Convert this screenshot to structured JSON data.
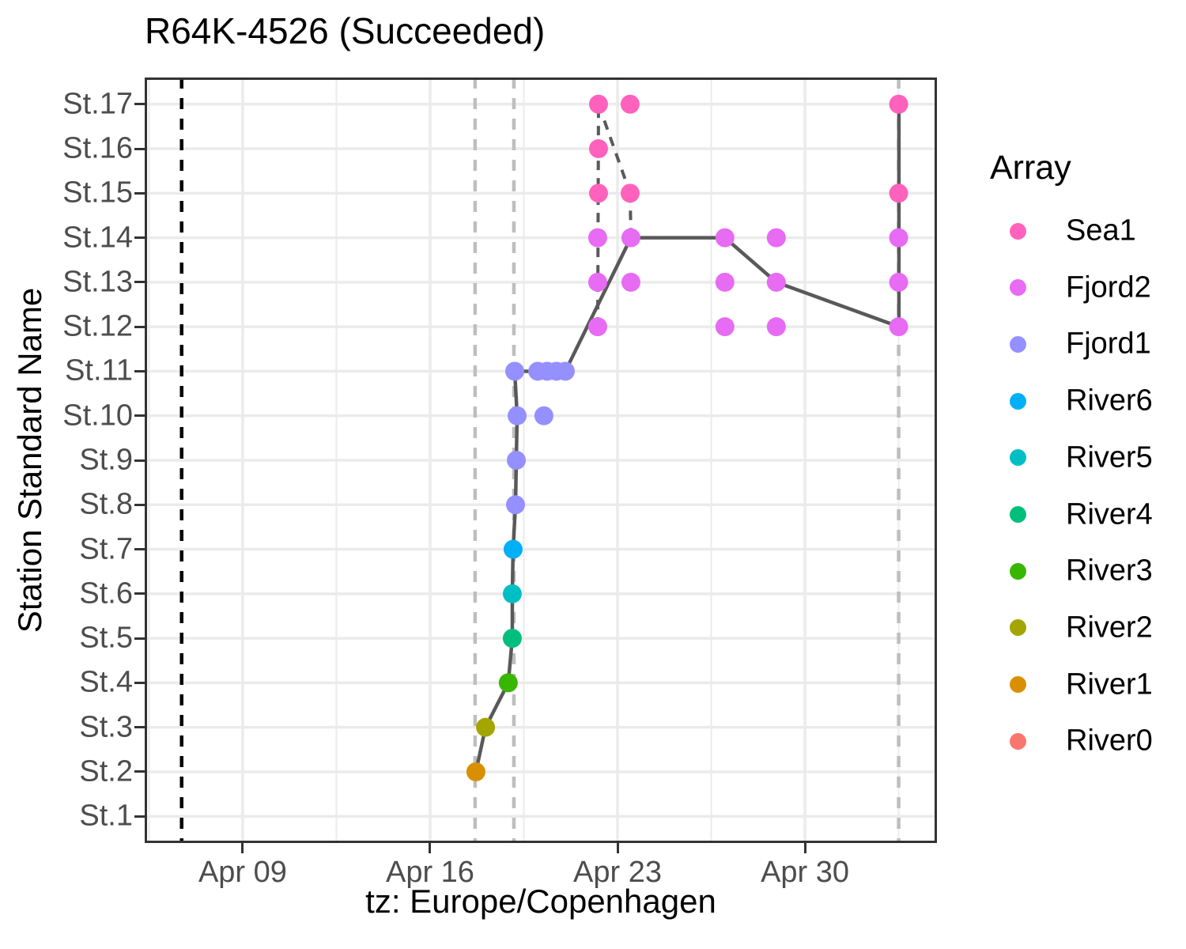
{
  "title": "R64K-4526 (Succeeded)",
  "legend": {
    "title": "Array",
    "items": [
      {
        "label": "Sea1",
        "color": "#FF62BC"
      },
      {
        "label": "Fjord2",
        "color": "#E76BF3"
      },
      {
        "label": "Fjord1",
        "color": "#9590FF"
      },
      {
        "label": "River6",
        "color": "#00B0F6"
      },
      {
        "label": "River5",
        "color": "#00BFC4"
      },
      {
        "label": "River4",
        "color": "#00BF7D"
      },
      {
        "label": "River3",
        "color": "#39B600"
      },
      {
        "label": "River2",
        "color": "#A3A500"
      },
      {
        "label": "River1",
        "color": "#D89000"
      },
      {
        "label": "River0",
        "color": "#F8766D"
      }
    ]
  },
  "chart_data": {
    "type": "scatter",
    "title": "R64K-4526 (Succeeded)",
    "xlabel": "tz: Europe/Copenhagen",
    "ylabel": "Station Standard Name",
    "x_unit": "day of April (values > 30 continue into May, e.g. 33.5 = May 3, 12:00)",
    "x_tick_labels": [
      "Apr 09",
      "Apr 16",
      "Apr 23",
      "Apr 30"
    ],
    "x_tick_days": [
      9,
      16,
      23,
      30
    ],
    "x_minor_days": [
      5.5,
      12.5,
      19.5,
      26.5,
      33.5
    ],
    "x_domain_days": [
      5.34,
      34.93
    ],
    "y_categories": [
      "St.1",
      "St.2",
      "St.3",
      "St.4",
      "St.5",
      "St.6",
      "St.7",
      "St.8",
      "St.9",
      "St.10",
      "St.11",
      "St.12",
      "St.13",
      "St.14",
      "St.15",
      "St.16",
      "St.17"
    ],
    "y_domain": [
      0.4,
      17.6
    ],
    "grid": {
      "major_color": "#EBEBEB",
      "minor_color": "#EBEBEB",
      "panel_border": "#333333"
    },
    "track_color": "#595959",
    "point_radius": 12,
    "series": [
      {
        "name": "Sea1",
        "color": "#FF62BC",
        "points": [
          {
            "day": 22.29,
            "station": 15
          },
          {
            "day": 23.47,
            "station": 15
          },
          {
            "day": 33.5,
            "station": 15
          },
          {
            "day": 22.29,
            "station": 16
          },
          {
            "day": 22.29,
            "station": 17
          },
          {
            "day": 23.47,
            "station": 17
          },
          {
            "day": 33.5,
            "station": 17
          }
        ]
      },
      {
        "name": "Fjord2",
        "color": "#E76BF3",
        "points": [
          {
            "day": 22.26,
            "station": 12
          },
          {
            "day": 27.01,
            "station": 12
          },
          {
            "day": 28.93,
            "station": 12
          },
          {
            "day": 33.5,
            "station": 12
          },
          {
            "day": 22.26,
            "station": 13
          },
          {
            "day": 23.5,
            "station": 13
          },
          {
            "day": 27.01,
            "station": 13
          },
          {
            "day": 28.93,
            "station": 13
          },
          {
            "day": 33.5,
            "station": 13
          },
          {
            "day": 22.26,
            "station": 14
          },
          {
            "day": 23.5,
            "station": 14
          },
          {
            "day": 27.01,
            "station": 14
          },
          {
            "day": 28.93,
            "station": 14
          },
          {
            "day": 33.5,
            "station": 14
          }
        ]
      },
      {
        "name": "Fjord1",
        "color": "#9590FF",
        "points": [
          {
            "day": 19.19,
            "station": 8
          },
          {
            "day": 19.22,
            "station": 9
          },
          {
            "day": 19.25,
            "station": 10
          },
          {
            "day": 20.25,
            "station": 10
          },
          {
            "day": 19.16,
            "station": 11
          },
          {
            "day": 20.02,
            "station": 11
          },
          {
            "day": 20.37,
            "station": 11
          },
          {
            "day": 20.72,
            "station": 11
          },
          {
            "day": 21.05,
            "station": 11
          }
        ]
      },
      {
        "name": "River6",
        "color": "#00B0F6",
        "points": [
          {
            "day": 19.1,
            "station": 7
          }
        ]
      },
      {
        "name": "River5",
        "color": "#00BFC4",
        "points": [
          {
            "day": 19.07,
            "station": 6
          }
        ]
      },
      {
        "name": "River4",
        "color": "#00BF7D",
        "points": [
          {
            "day": 19.07,
            "station": 5
          }
        ]
      },
      {
        "name": "River3",
        "color": "#39B600",
        "points": [
          {
            "day": 18.92,
            "station": 4
          }
        ]
      },
      {
        "name": "River2",
        "color": "#A3A500",
        "points": [
          {
            "day": 18.07,
            "station": 3
          }
        ]
      },
      {
        "name": "River1",
        "color": "#D89000",
        "points": [
          {
            "day": 17.71,
            "station": 2
          }
        ]
      },
      {
        "name": "River0",
        "color": "#F8766D",
        "points": []
      }
    ],
    "track_solid": [
      [
        17.71,
        2
      ],
      [
        18.07,
        3
      ],
      [
        18.92,
        4
      ],
      [
        19.07,
        5
      ],
      [
        19.07,
        6
      ],
      [
        19.1,
        7
      ],
      [
        19.19,
        8
      ],
      [
        19.22,
        9
      ],
      [
        19.25,
        10
      ],
      [
        19.16,
        11
      ],
      [
        21.05,
        11
      ],
      [
        23.5,
        14
      ],
      [
        27.01,
        14
      ],
      [
        28.93,
        13
      ],
      [
        33.51,
        12
      ],
      [
        33.51,
        17
      ]
    ],
    "track_dashed": [
      [
        [
          22.26,
          12
        ],
        [
          22.29,
          17
        ]
      ],
      [
        [
          22.29,
          17
        ],
        [
          23.47,
          15
        ]
      ],
      [
        [
          23.47,
          15
        ],
        [
          23.5,
          14
        ]
      ]
    ],
    "vlines": [
      {
        "day": 6.72,
        "color": "#000000",
        "dash": "14 12",
        "width": 4.5
      },
      {
        "day": 17.68,
        "color": "#BEBEBE",
        "dash": "14 12",
        "width": 4.5
      },
      {
        "day": 19.13,
        "color": "#BEBEBE",
        "dash": "14 12",
        "width": 4.5
      },
      {
        "day": 33.5,
        "color": "#BEBEBE",
        "dash": "14 12",
        "width": 4.5
      }
    ]
  }
}
